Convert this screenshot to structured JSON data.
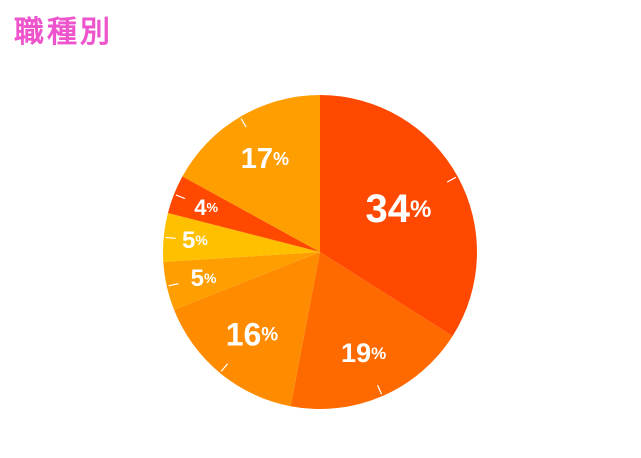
{
  "chart_data": {
    "type": "pie",
    "title": "職種別",
    "start_angle": "12 o'clock",
    "direction": "clockwise",
    "legend": "none",
    "slices": [
      {
        "label": "34",
        "unit": "%",
        "value": 34,
        "color": "#FF4800"
      },
      {
        "label": "19",
        "unit": "%",
        "value": 19,
        "color": "#FF6A00"
      },
      {
        "label": "16",
        "unit": "%",
        "value": 16,
        "color": "#FF8C00"
      },
      {
        "label": "5",
        "unit": "%",
        "value": 5,
        "color": "#FF9E00"
      },
      {
        "label": "5",
        "unit": "%",
        "value": 5,
        "color": "#FFC000"
      },
      {
        "label": "4",
        "unit": "%",
        "value": 4,
        "color": "#FF4800"
      },
      {
        "label": "17",
        "unit": "%",
        "value": 17,
        "color": "#FF9E00"
      }
    ]
  },
  "colors": {
    "title": "#EE55CC",
    "label": "#FFFFFF"
  }
}
